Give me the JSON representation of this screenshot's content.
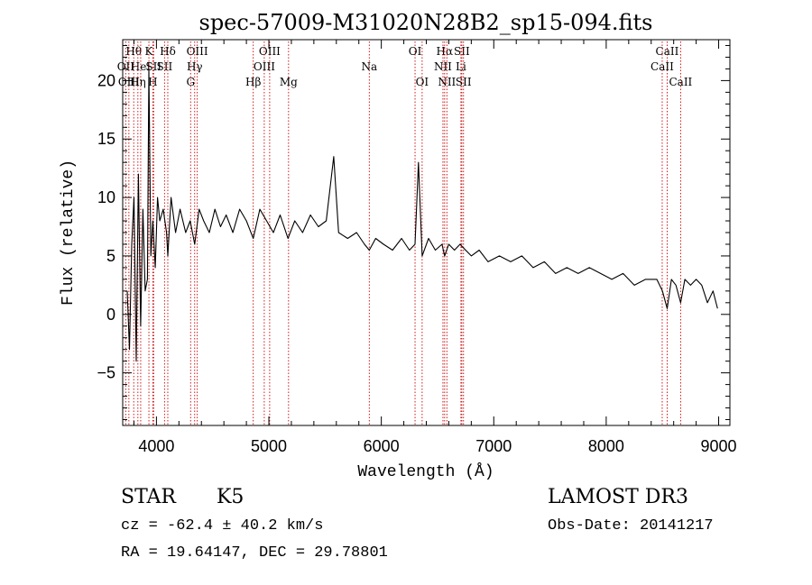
{
  "chart_data": {
    "type": "line",
    "title": "spec-57009-M31020N28B2_sp15-094.fits",
    "xlabel": "Wavelength (Å)",
    "ylabel": "Flux (relative)",
    "xlim": [
      3700,
      9100
    ],
    "ylim": [
      -9.5,
      23.5
    ],
    "x_ticks": [
      4000,
      5000,
      6000,
      7000,
      8000,
      9000
    ],
    "y_ticks": [
      -5,
      0,
      5,
      10,
      15,
      20
    ],
    "line_color": "#000000",
    "marker_color": "#cc0000",
    "spectrum": {
      "name": "flux",
      "x": [
        3740,
        3760,
        3780,
        3800,
        3820,
        3840,
        3860,
        3880,
        3900,
        3920,
        3933,
        3950,
        3968,
        3990,
        4010,
        4030,
        4060,
        4090,
        4101,
        4130,
        4170,
        4210,
        4260,
        4300,
        4340,
        4380,
        4420,
        4470,
        4520,
        4570,
        4620,
        4680,
        4740,
        4800,
        4861,
        4920,
        4980,
        5040,
        5100,
        5170,
        5230,
        5300,
        5370,
        5440,
        5510,
        5577,
        5620,
        5700,
        5780,
        5850,
        5893,
        5950,
        6020,
        6100,
        6180,
        6250,
        6300,
        6330,
        6363,
        6420,
        6480,
        6540,
        6563,
        6600,
        6650,
        6700,
        6750,
        6800,
        6870,
        6950,
        7050,
        7150,
        7250,
        7350,
        7450,
        7550,
        7650,
        7750,
        7850,
        7950,
        8050,
        8150,
        8250,
        8350,
        8450,
        8500,
        8542,
        8580,
        8620,
        8662,
        8700,
        8750,
        8800,
        8850,
        8900,
        8950,
        8990
      ],
      "y": [
        2,
        -3,
        6,
        10,
        -4,
        12,
        -1,
        9,
        2,
        3,
        21,
        5,
        8,
        4,
        10,
        8,
        9,
        7,
        5,
        10,
        7,
        9,
        7,
        8,
        6,
        9,
        8,
        7,
        9,
        7.5,
        8.5,
        7,
        9,
        8,
        6.5,
        9,
        8,
        7,
        8.5,
        6.5,
        8,
        7,
        8.5,
        7.5,
        8,
        13.5,
        7,
        6.5,
        7,
        6,
        5.5,
        6.5,
        6,
        5.5,
        6.5,
        5.5,
        6,
        13,
        5,
        6.5,
        5.5,
        6,
        5,
        6,
        5.5,
        6,
        5.5,
        5,
        5.5,
        4.5,
        5,
        4.5,
        5,
        4,
        4.5,
        3.5,
        4,
        3.5,
        4,
        3.5,
        3,
        3.5,
        2.5,
        3,
        3,
        2,
        0.5,
        3,
        2.5,
        1,
        3,
        2.5,
        3,
        2.5,
        1,
        2,
        0.5
      ]
    },
    "line_markers": [
      {
        "label": "Hθ",
        "x": 3798,
        "row": 1
      },
      {
        "label": "OII",
        "x": 3727,
        "row": 2
      },
      {
        "label": "OIII",
        "x": 3755,
        "row": 3
      },
      {
        "label": "HeI",
        "x": 3860,
        "row": 2
      },
      {
        "label": "Hη",
        "x": 3835,
        "row": 3
      },
      {
        "label": "K",
        "x": 3933,
        "row": 1
      },
      {
        "label": "SII",
        "x": 3975,
        "row": 2
      },
      {
        "label": "H",
        "x": 3968,
        "row": 3
      },
      {
        "label": "Hδ",
        "x": 4101,
        "row": 1
      },
      {
        "label": "SII",
        "x": 4072,
        "row": 2
      },
      {
        "label": "OIII",
        "x": 4363,
        "row": 1
      },
      {
        "label": "Hγ",
        "x": 4340,
        "row": 2
      },
      {
        "label": "G",
        "x": 4304,
        "row": 3
      },
      {
        "label": "Hβ",
        "x": 4861,
        "row": 3
      },
      {
        "label": "OIII",
        "x": 5007,
        "row": 1
      },
      {
        "label": "OIII",
        "x": 4959,
        "row": 2
      },
      {
        "label": "Mg",
        "x": 5175,
        "row": 3
      },
      {
        "label": "Na",
        "x": 5893,
        "row": 2
      },
      {
        "label": "OI",
        "x": 6300,
        "row": 1
      },
      {
        "label": "OI",
        "x": 6363,
        "row": 3
      },
      {
        "label": "Hα",
        "x": 6563,
        "row": 1
      },
      {
        "label": "NII",
        "x": 6548,
        "row": 2
      },
      {
        "label": "NII",
        "x": 6583,
        "row": 3
      },
      {
        "label": "SII",
        "x": 6716,
        "row": 1
      },
      {
        "label": "Li",
        "x": 6708,
        "row": 2
      },
      {
        "label": "SII",
        "x": 6731,
        "row": 3
      },
      {
        "label": "CaII",
        "x": 8542,
        "row": 1
      },
      {
        "label": "CaII",
        "x": 8498,
        "row": 2
      },
      {
        "label": "CaII",
        "x": 8662,
        "row": 3
      }
    ]
  },
  "info": {
    "class": "STAR",
    "subclass": "K5",
    "survey": "LAMOST DR3",
    "redshift": "cz = -62.4 ± 40.2 km/s",
    "obs_date": "Obs-Date: 20141217",
    "coords": "RA =  19.64147, DEC =  29.78801"
  }
}
